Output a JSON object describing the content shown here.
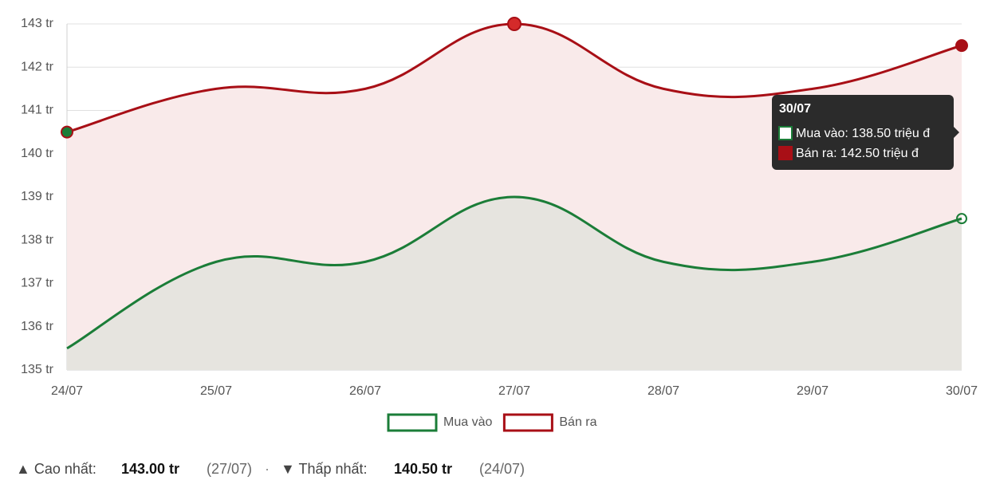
{
  "chart_data": {
    "type": "line",
    "categories": [
      "24/07",
      "25/07",
      "26/07",
      "27/07",
      "28/07",
      "29/07",
      "30/07"
    ],
    "series": [
      {
        "name": "Mua vào",
        "color": "#1b7d38",
        "fill": "#e6e4df",
        "values": [
          135.5,
          137.5,
          137.5,
          139,
          137.5,
          137.5,
          138.5
        ]
      },
      {
        "name": "Bán ra",
        "color": "#a80f16",
        "fill": "#f9eaea",
        "values": [
          140.5,
          141.5,
          141.5,
          143,
          141.5,
          141.5,
          142.5
        ]
      }
    ],
    "ylim": [
      135,
      143
    ],
    "yticks": [
      {
        "value": 135,
        "label": "135 tr"
      },
      {
        "value": 136,
        "label": "136 tr"
      },
      {
        "value": 137,
        "label": "137 tr"
      },
      {
        "value": 138,
        "label": "138 tr"
      },
      {
        "value": 139,
        "label": "139 tr"
      },
      {
        "value": 140,
        "label": "140 tr"
      },
      {
        "value": 141,
        "label": "141 tr"
      },
      {
        "value": 142,
        "label": "142 tr"
      },
      {
        "value": 143,
        "label": "143 tr"
      }
    ],
    "grid": true,
    "legend": "bottom",
    "tooltip": {
      "title": "30/07",
      "lines": [
        "Mua vào: 138.50 triệu đ",
        "Bán ra: 142.50 triệu đ"
      ]
    },
    "summary": {
      "high_label": "▲ Cao nhất:",
      "high_value": "143.00 tr",
      "high_date": "(27/07)",
      "separator": "·",
      "low_label": "▼ Thấp nhất:",
      "low_value": "140.50 tr",
      "low_date": "(24/07)"
    }
  }
}
